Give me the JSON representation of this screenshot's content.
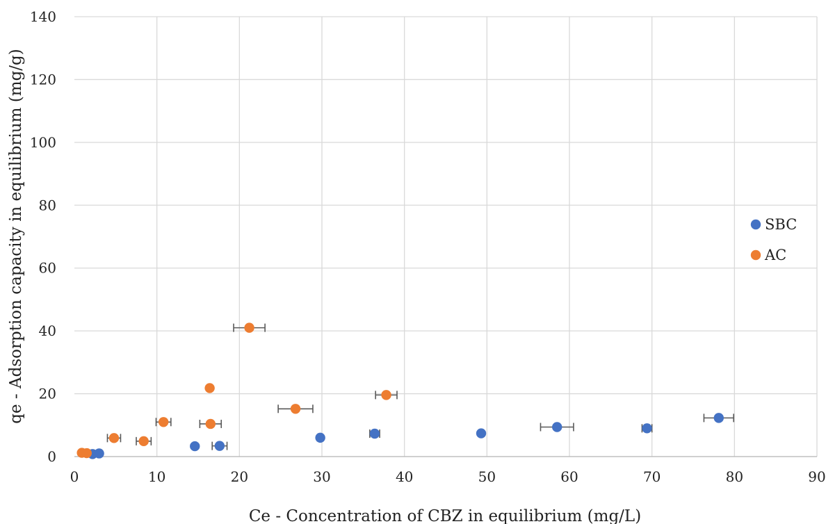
{
  "chart_data": {
    "type": "scatter",
    "xlabel": "Ce - Concentration of CBZ in equilibrium (mg/L)",
    "ylabel": "qe - Adsorption capacity in equilibrium (mg/g)",
    "xlim": [
      0,
      90
    ],
    "ylim": [
      0,
      140
    ],
    "xticks": [
      "0",
      "10",
      "20",
      "30",
      "40",
      "50",
      "60",
      "70",
      "80",
      "90"
    ],
    "yticks": [
      "0",
      "20",
      "40",
      "60",
      "80",
      "100",
      "120",
      "140"
    ],
    "grid": true,
    "legend_position": "right",
    "series": [
      {
        "name": "SBC",
        "color": "#4472c4",
        "points": [
          {
            "x": 2.2,
            "y": 0.8,
            "xerr": 0
          },
          {
            "x": 3.0,
            "y": 1.0,
            "xerr": 0
          },
          {
            "x": 14.6,
            "y": 3.3,
            "xerr": 0
          },
          {
            "x": 17.6,
            "y": 3.4,
            "xerr": 0.9
          },
          {
            "x": 29.8,
            "y": 6.0,
            "xerr": 0
          },
          {
            "x": 36.4,
            "y": 7.3,
            "xerr": 0.6
          },
          {
            "x": 49.3,
            "y": 7.4,
            "xerr": 0
          },
          {
            "x": 58.5,
            "y": 9.4,
            "xerr": 2.0
          },
          {
            "x": 69.4,
            "y": 9.0,
            "xerr": 0.6
          },
          {
            "x": 78.1,
            "y": 12.3,
            "xerr": 1.8
          }
        ]
      },
      {
        "name": "AC",
        "color": "#ed7d31",
        "points": [
          {
            "x": 0.9,
            "y": 1.2,
            "xerr": 0
          },
          {
            "x": 1.5,
            "y": 1.1,
            "xerr": 0
          },
          {
            "x": 4.8,
            "y": 5.9,
            "xerr": 0.8
          },
          {
            "x": 8.4,
            "y": 4.9,
            "xerr": 0.9
          },
          {
            "x": 10.8,
            "y": 11.0,
            "xerr": 0.9
          },
          {
            "x": 16.4,
            "y": 21.8,
            "xerr": 0
          },
          {
            "x": 16.5,
            "y": 10.4,
            "xerr": 1.3
          },
          {
            "x": 21.2,
            "y": 41.0,
            "xerr": 1.9
          },
          {
            "x": 26.8,
            "y": 15.2,
            "xerr": 2.1
          },
          {
            "x": 37.8,
            "y": 19.6,
            "xerr": 1.3
          }
        ]
      }
    ]
  }
}
